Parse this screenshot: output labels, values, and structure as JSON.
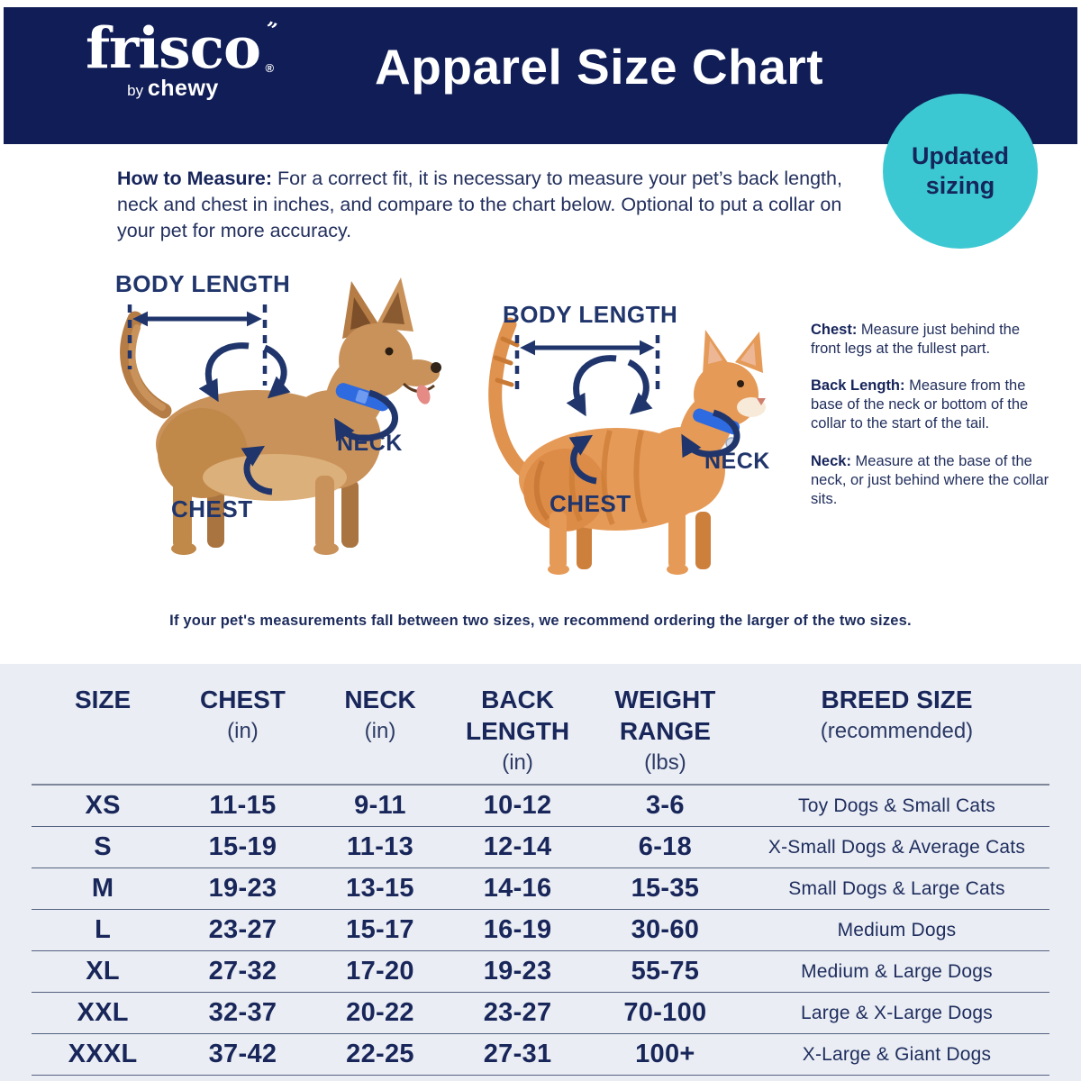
{
  "header": {
    "logo_brand": "frisco",
    "logo_registered": "®",
    "logo_flourish": "”",
    "logo_by": "by",
    "logo_chewy": "chewy",
    "title": "Apparel Size Chart"
  },
  "badge": {
    "line1": "Updated",
    "line2": "sizing"
  },
  "how_to_measure": {
    "label": "How to Measure:",
    "text": " For a correct fit, it is necessary to measure your pet’s back length, neck and chest in inches, and compare to the chart below. Optional to put a collar on your pet for more accuracy."
  },
  "diagram_labels": {
    "body_length": "BODY LENGTH",
    "neck": "NECK",
    "chest": "CHEST"
  },
  "measure_tips": [
    {
      "label": "Chest:",
      "text": " Measure just behind the front legs at the fullest part."
    },
    {
      "label": "Back Length:",
      "text": " Measure from the base of the neck or bottom of the collar to the start of the tail."
    },
    {
      "label": "Neck:",
      "text": " Measure at the base of the neck, or just behind where the collar sits."
    }
  ],
  "note": "If your pet's measurements fall between two sizes, we recommend ordering the larger of the two sizes.",
  "chart_data": {
    "type": "table",
    "title": "Apparel Size Chart",
    "columns": [
      {
        "lines": [
          "SIZE"
        ]
      },
      {
        "lines": [
          "CHEST",
          "(in)"
        ]
      },
      {
        "lines": [
          "NECK",
          "(in)"
        ]
      },
      {
        "lines": [
          "BACK",
          "LENGTH",
          "(in)"
        ]
      },
      {
        "lines": [
          "WEIGHT",
          "RANGE",
          "(lbs)"
        ]
      },
      {
        "lines": [
          "BREED SIZE",
          "(recommended)"
        ]
      }
    ],
    "column_keys": [
      "size",
      "chest",
      "neck",
      "back_length",
      "weight",
      "breed"
    ],
    "rows": [
      {
        "size": "XS",
        "chest": "11-15",
        "neck": "9-11",
        "back_length": "10-12",
        "weight": "3-6",
        "breed": "Toy Dogs & Small Cats"
      },
      {
        "size": "S",
        "chest": "15-19",
        "neck": "11-13",
        "back_length": "12-14",
        "weight": "6-18",
        "breed": "X-Small Dogs & Average Cats"
      },
      {
        "size": "M",
        "chest": "19-23",
        "neck": "13-15",
        "back_length": "14-16",
        "weight": "15-35",
        "breed": "Small Dogs & Large Cats"
      },
      {
        "size": "L",
        "chest": "23-27",
        "neck": "15-17",
        "back_length": "16-19",
        "weight": "30-60",
        "breed": "Medium Dogs"
      },
      {
        "size": "XL",
        "chest": "27-32",
        "neck": "17-20",
        "back_length": "19-23",
        "weight": "55-75",
        "breed": "Medium & Large Dogs"
      },
      {
        "size": "XXL",
        "chest": "32-37",
        "neck": "20-22",
        "back_length": "23-27",
        "weight": "70-100",
        "breed": "Large & X-Large Dogs"
      },
      {
        "size": "XXXL",
        "chest": "37-42",
        "neck": "22-25",
        "back_length": "27-31",
        "weight": "100+",
        "breed": "X-Large & Giant Dogs"
      }
    ]
  },
  "colors": {
    "header_navy": "#101d56",
    "badge_teal": "#3cc8d2",
    "text_navy": "#1e2d5e",
    "table_background": "#eaedf3",
    "collar_blue": "#2e6ae0",
    "dog_tan": "#c9925a",
    "cat_orange": "#e59a58"
  }
}
